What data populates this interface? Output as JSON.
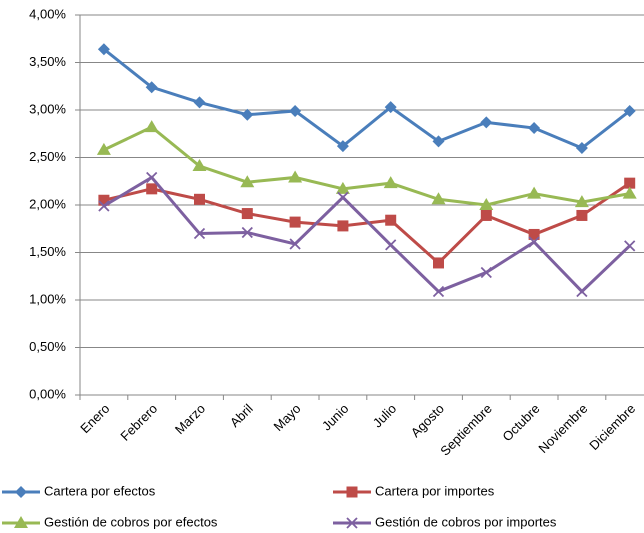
{
  "chart_data": {
    "type": "line",
    "categories": [
      "Enero",
      "Febrero",
      "Marzo",
      "Abril",
      "Mayo",
      "Junio",
      "Julio",
      "Agosto",
      "Septiembre",
      "Octubre",
      "Noviembre",
      "Diciembre"
    ],
    "series": [
      {
        "name": "Cartera por efectos",
        "color": "#4a7ebb",
        "marker": "diamond",
        "values": [
          3.64,
          3.24,
          3.08,
          2.95,
          2.99,
          2.62,
          3.03,
          2.67,
          2.87,
          2.81,
          2.6,
          2.99
        ]
      },
      {
        "name": "Cartera por importes",
        "color": "#be4b48",
        "marker": "square",
        "values": [
          2.05,
          2.17,
          2.06,
          1.91,
          1.82,
          1.78,
          1.84,
          1.39,
          1.89,
          1.69,
          1.89,
          2.23
        ]
      },
      {
        "name": "Gestión de cobros por efectos",
        "color": "#98b954",
        "marker": "triangle",
        "values": [
          2.58,
          2.82,
          2.41,
          2.24,
          2.29,
          2.17,
          2.23,
          2.06,
          2.0,
          2.12,
          2.03,
          2.12
        ]
      },
      {
        "name": "Gestión de cobros por importes",
        "color": "#7d60a0",
        "marker": "x",
        "values": [
          1.99,
          2.29,
          1.7,
          1.71,
          1.59,
          2.08,
          1.58,
          1.09,
          1.29,
          1.61,
          1.09,
          1.57
        ]
      }
    ],
    "ylim": [
      0,
      4
    ],
    "yticks": [
      {
        "value": 0,
        "label": "0,00%"
      },
      {
        "value": 0.5,
        "label": "0,50%"
      },
      {
        "value": 1,
        "label": "1,00%"
      },
      {
        "value": 1.5,
        "label": "1,50%"
      },
      {
        "value": 2,
        "label": "2,00%"
      },
      {
        "value": 2.5,
        "label": "2,50%"
      },
      {
        "value": 3,
        "label": "3,00%"
      },
      {
        "value": 3.5,
        "label": "3,50%"
      },
      {
        "value": 4,
        "label": "4,00%"
      }
    ],
    "grid": true,
    "legend": "bottom"
  }
}
